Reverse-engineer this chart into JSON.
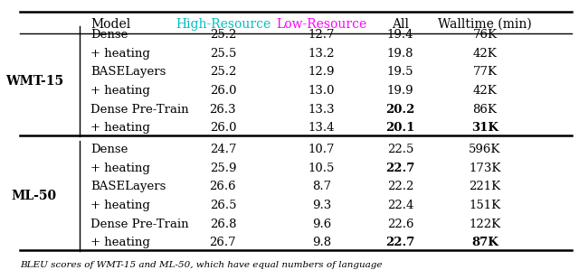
{
  "header": [
    "Model",
    "High-Resource",
    "Low-Resource",
    "All",
    "Walltime (min)"
  ],
  "header_colors": [
    "black",
    "#00BFBF",
    "#FF00FF",
    "black",
    "black"
  ],
  "sections": [
    {
      "label": "WMT-15",
      "rows": [
        {
          "model": "Dense",
          "high": "25.2",
          "low": "12.7",
          "all": "19.4",
          "wall": "76K",
          "bold_all": false,
          "bold_wall": false
        },
        {
          "model": "+ heating",
          "high": "25.5",
          "low": "13.2",
          "all": "19.8",
          "wall": "42K",
          "bold_all": false,
          "bold_wall": false
        },
        {
          "model": "BASELayers",
          "high": "25.2",
          "low": "12.9",
          "all": "19.5",
          "wall": "77K",
          "bold_all": false,
          "bold_wall": false
        },
        {
          "model": "+ heating",
          "high": "26.0",
          "low": "13.0",
          "all": "19.9",
          "wall": "42K",
          "bold_all": false,
          "bold_wall": false
        },
        {
          "model": "Dense Pre-Train",
          "high": "26.3",
          "low": "13.3",
          "all": "20.2",
          "wall": "86K",
          "bold_all": true,
          "bold_wall": false
        },
        {
          "model": "+ heating",
          "high": "26.0",
          "low": "13.4",
          "all": "20.1",
          "wall": "31K",
          "bold_all": true,
          "bold_wall": true
        }
      ]
    },
    {
      "label": "ML-50",
      "rows": [
        {
          "model": "Dense",
          "high": "24.7",
          "low": "10.7",
          "all": "22.5",
          "wall": "596K",
          "bold_all": false,
          "bold_wall": false
        },
        {
          "model": "+ heating",
          "high": "25.9",
          "low": "10.5",
          "all": "22.7",
          "wall": "173K",
          "bold_all": true,
          "bold_wall": false
        },
        {
          "model": "BASELayers",
          "high": "26.6",
          "low": "8.7",
          "all": "22.2",
          "wall": "221K",
          "bold_all": false,
          "bold_wall": false
        },
        {
          "model": "+ heating",
          "high": "26.5",
          "low": "9.3",
          "all": "22.4",
          "wall": "151K",
          "bold_all": false,
          "bold_wall": false
        },
        {
          "model": "Dense Pre-Train",
          "high": "26.8",
          "low": "9.6",
          "all": "22.6",
          "wall": "122K",
          "bold_all": false,
          "bold_wall": false
        },
        {
          "model": "+ heating",
          "high": "26.7",
          "low": "9.8",
          "all": "22.7",
          "wall": "87K",
          "bold_all": true,
          "bold_wall": true
        }
      ]
    }
  ],
  "caption": "BLEU scores of WMT-15 and ML-50, which have equal numbers of language",
  "bg_color": "#FFFFFF",
  "font_size": 9.5,
  "header_font_size": 10
}
